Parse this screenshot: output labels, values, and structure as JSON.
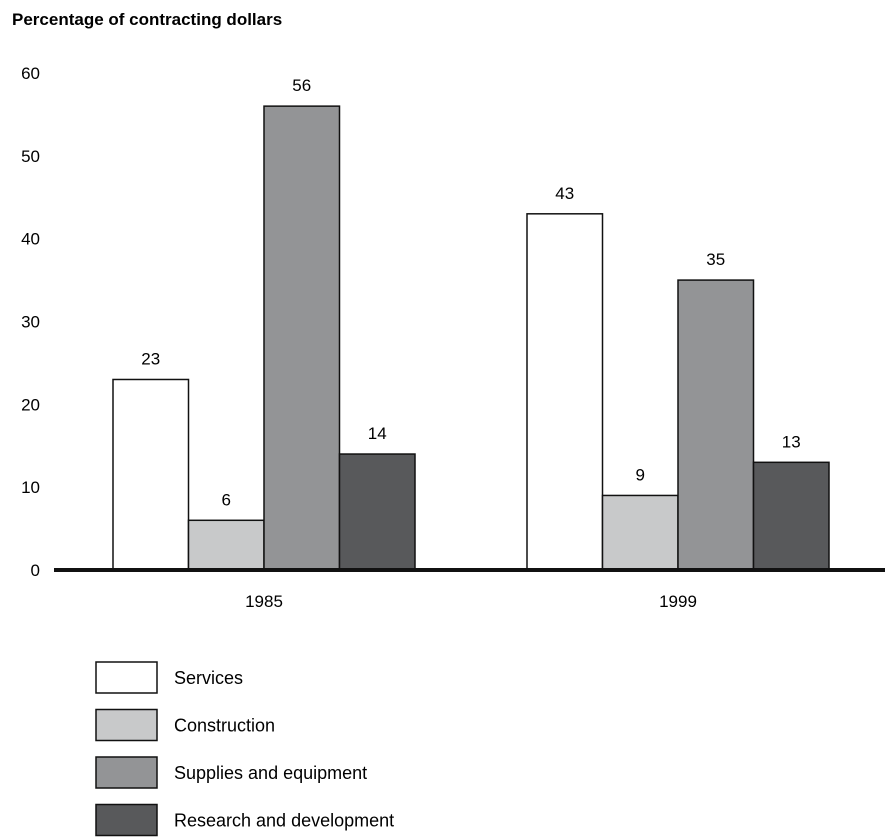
{
  "chart_data": {
    "type": "bar",
    "ylabel": "Percentage of contracting dollars",
    "xlabel": "",
    "ylim": [
      0,
      60
    ],
    "yticks": [
      0,
      10,
      20,
      30,
      40,
      50,
      60
    ],
    "categories": [
      "1985",
      "1999"
    ],
    "series": [
      {
        "name": "Services",
        "values": [
          23,
          43
        ],
        "color": "#ffffff"
      },
      {
        "name": "Construction",
        "values": [
          6,
          9
        ],
        "color": "#c8c9ca"
      },
      {
        "name": "Supplies and equipment",
        "values": [
          56,
          35
        ],
        "color": "#939496"
      },
      {
        "name": "Research and development",
        "values": [
          14,
          13
        ],
        "color": "#58595b"
      }
    ],
    "data_labels": true,
    "grid": false,
    "legend_position": "bottom-left"
  }
}
